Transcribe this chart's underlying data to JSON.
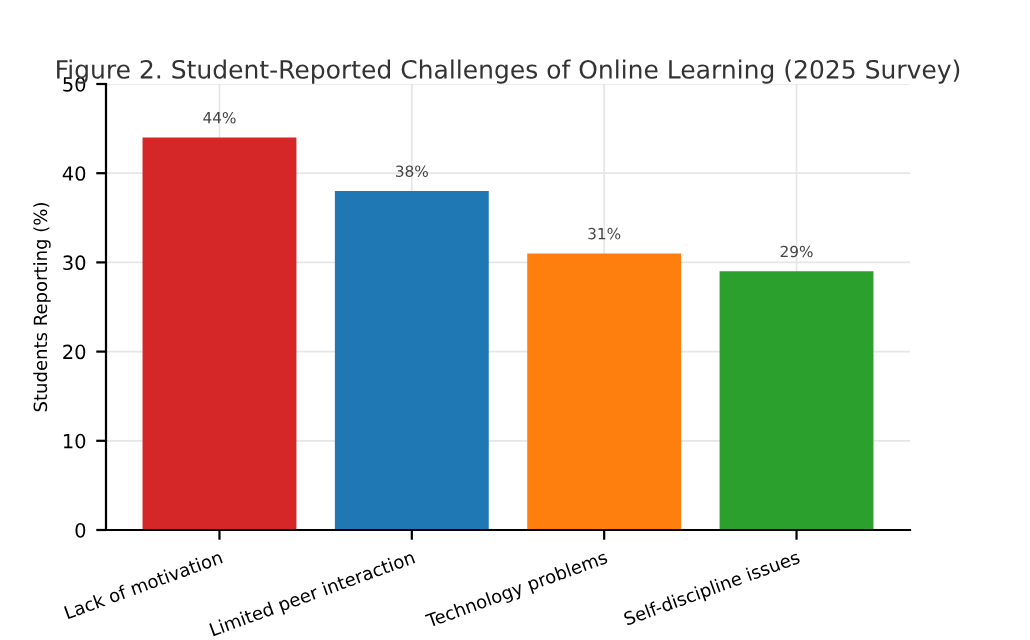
{
  "chart_data": {
    "type": "bar",
    "title": "Figure 2. Student-Reported Challenges of Online Learning (2025 Survey)",
    "ylabel": "Students Reporting (%)",
    "categories": [
      "Lack of motivation",
      "Limited peer interaction",
      "Technology problems",
      "Self-discipline issues"
    ],
    "values": [
      44,
      38,
      31,
      29
    ],
    "colors": [
      "#d62728",
      "#1f77b4",
      "#ff7f0e",
      "#2ca02c"
    ],
    "value_labels": [
      "44%",
      "38%",
      "31%",
      "29%"
    ],
    "ylim": [
      0,
      50
    ],
    "yticks": [
      0,
      10,
      20,
      30,
      40,
      50
    ],
    "grid": true,
    "legend": false
  }
}
